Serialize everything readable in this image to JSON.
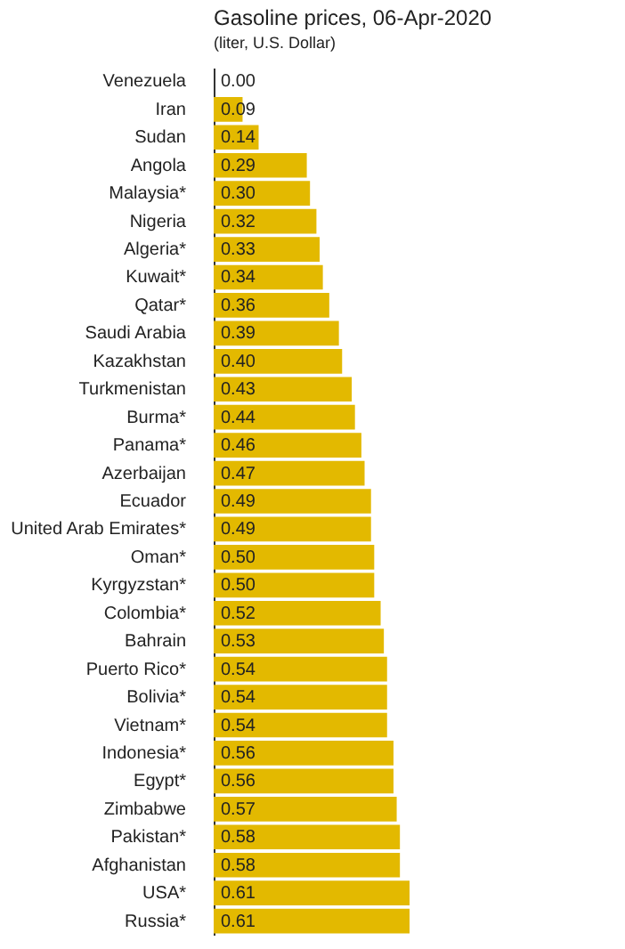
{
  "chart_data": {
    "type": "bar",
    "orientation": "horizontal",
    "title": "Gasoline prices, 06-Apr-2020",
    "subtitle": "(liter, U.S. Dollar)",
    "categories": [
      "Venezuela",
      "Iran",
      "Sudan",
      "Angola",
      "Malaysia*",
      "Nigeria",
      "Algeria*",
      "Kuwait*",
      "Qatar*",
      "Saudi Arabia",
      "Kazakhstan",
      "Turkmenistan",
      "Burma*",
      "Panama*",
      "Azerbaijan",
      "Ecuador",
      "United Arab Emirates*",
      "Oman*",
      "Kyrgyzstan*",
      "Colombia*",
      "Bahrain",
      "Puerto Rico*",
      "Bolivia*",
      "Vietnam*",
      "Indonesia*",
      "Egypt*",
      "Zimbabwe",
      "Pakistan*",
      "Afghanistan",
      "USA*",
      "Russia*"
    ],
    "values": [
      0.0,
      0.09,
      0.14,
      0.29,
      0.3,
      0.32,
      0.33,
      0.34,
      0.36,
      0.39,
      0.4,
      0.43,
      0.44,
      0.46,
      0.47,
      0.49,
      0.49,
      0.5,
      0.5,
      0.52,
      0.53,
      0.54,
      0.54,
      0.54,
      0.56,
      0.56,
      0.57,
      0.58,
      0.58,
      0.61,
      0.61
    ],
    "value_labels": [
      "0.00",
      "0.09",
      "0.14",
      "0.29",
      "0.30",
      "0.32",
      "0.33",
      "0.34",
      "0.36",
      "0.39",
      "0.40",
      "0.43",
      "0.44",
      "0.46",
      "0.47",
      "0.49",
      "0.49",
      "0.50",
      "0.50",
      "0.52",
      "0.53",
      "0.54",
      "0.54",
      "0.54",
      "0.56",
      "0.56",
      "0.57",
      "0.58",
      "0.58",
      "0.61",
      "0.61"
    ],
    "color": "#e3b900",
    "tick_labels": "y",
    "grid": false
  }
}
